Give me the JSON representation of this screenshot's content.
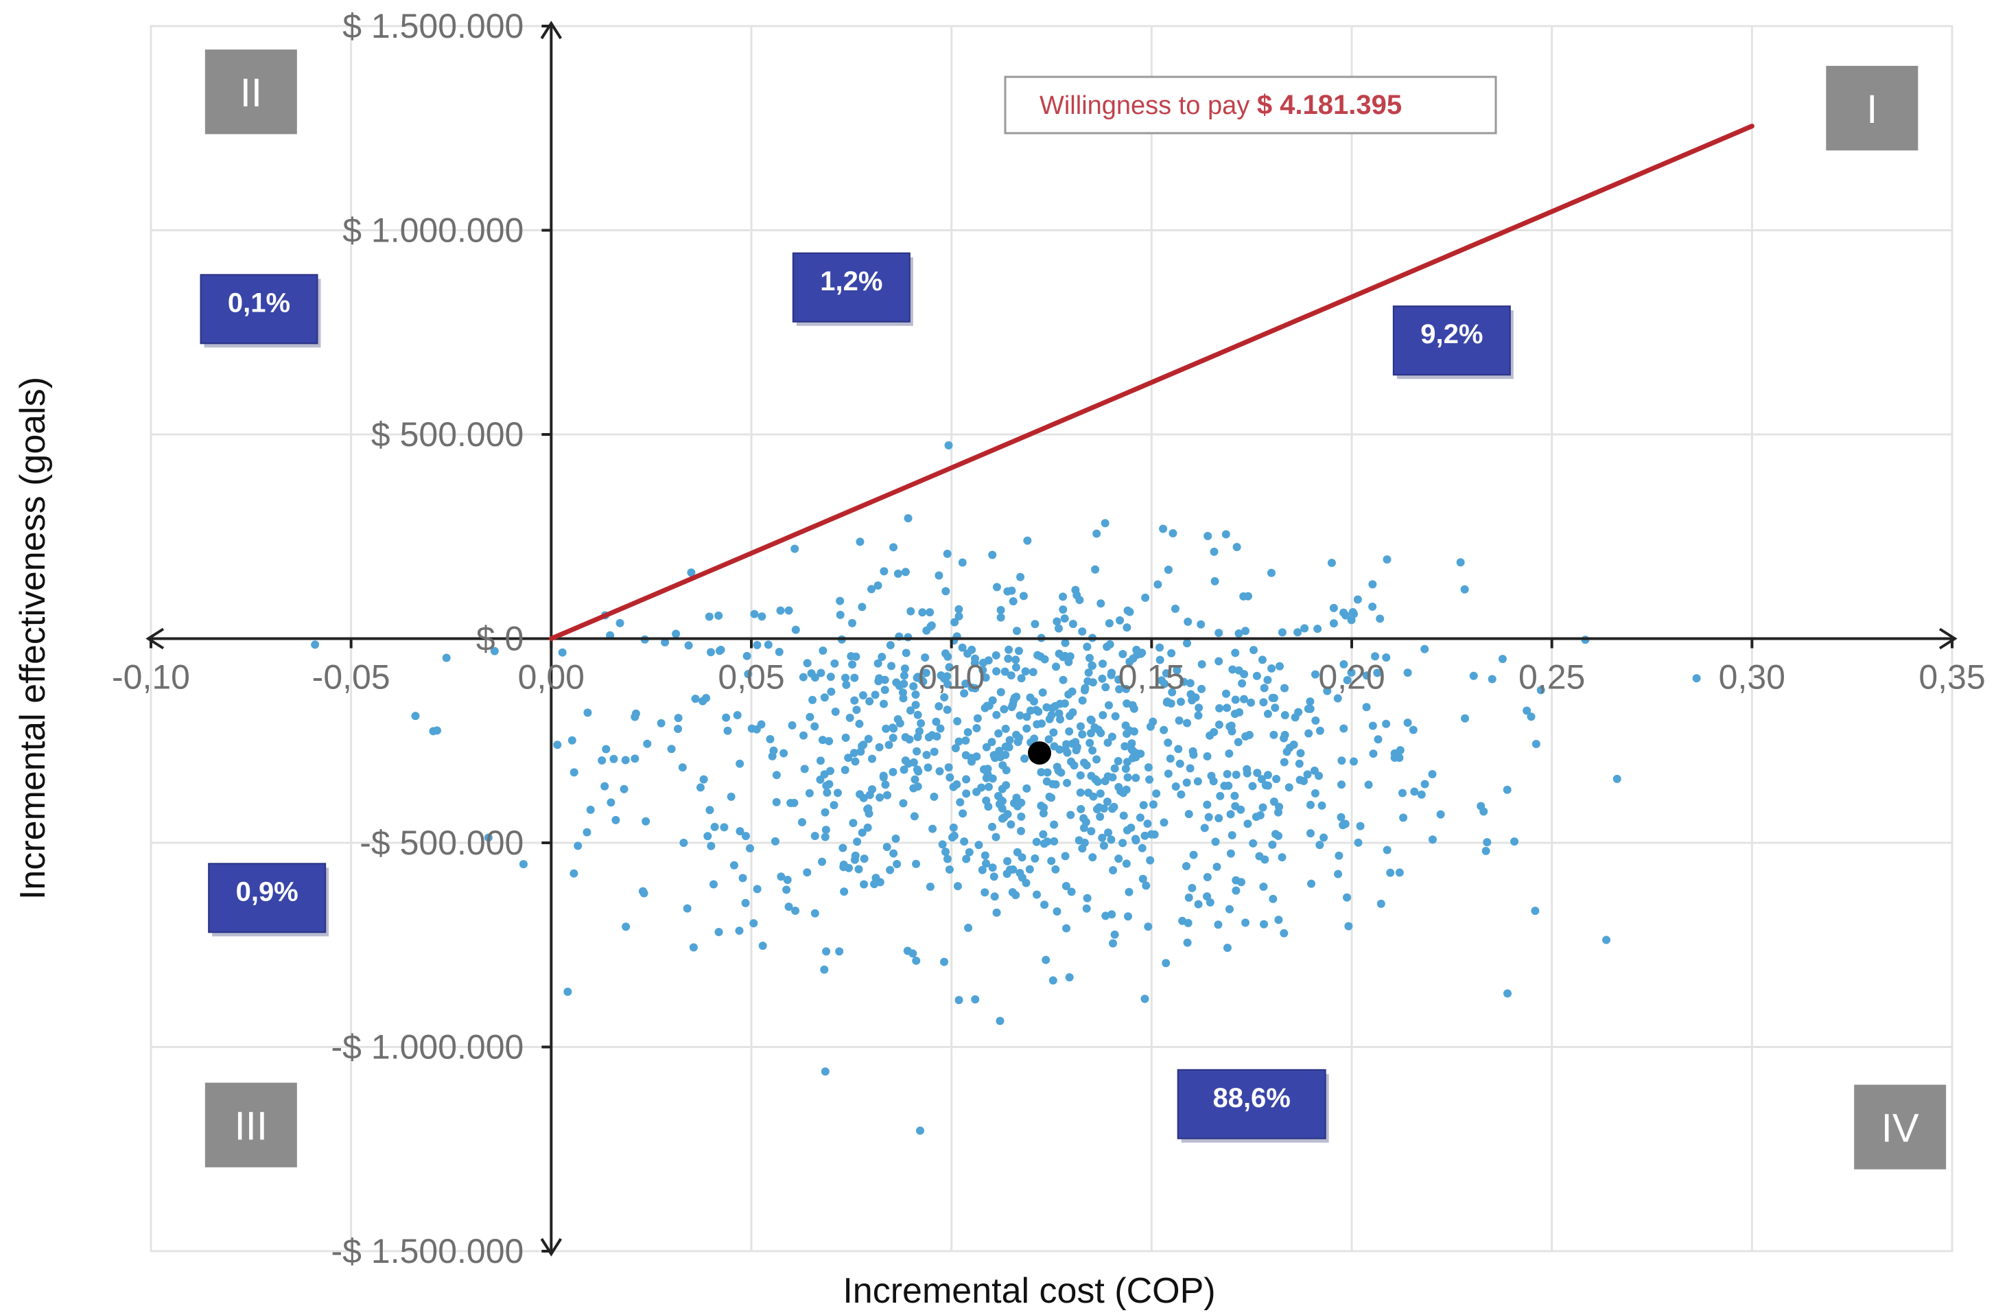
{
  "chart_data": {
    "type": "scatter",
    "xlabel": "Incremental cost (COP)",
    "ylabel": "Incremental effectiveness (goals)",
    "xlim": [
      -0.1,
      0.35
    ],
    "ylim": [
      -1500000,
      1500000
    ],
    "x_ticks": [
      "-0,10",
      "-0,05",
      "0,00",
      "0,05",
      "0,10",
      "0,15",
      "0,20",
      "0,25",
      "0,30",
      "0,35"
    ],
    "x_tick_values": [
      -0.1,
      -0.05,
      0.0,
      0.05,
      0.1,
      0.15,
      0.2,
      0.25,
      0.3,
      0.35
    ],
    "y_ticks": [
      "$ 1.500.000",
      "$ 1.000.000",
      "$ 500.000",
      "$ 0",
      "-$ 500.000",
      "-$ 1.000.000",
      "-$ 1.500.000"
    ],
    "y_tick_values": [
      1500000,
      1000000,
      500000,
      0,
      -500000,
      -1000000,
      -1500000
    ],
    "grid": true,
    "point_color": "#4fa3d6",
    "line_color": "#b8262c",
    "mean_point": {
      "x": 0.122,
      "y": -280000
    },
    "wtp_line": {
      "x": [
        0.0,
        0.3
      ],
      "y": [
        0,
        1255000
      ]
    },
    "willingness_label": "Willingness to pay",
    "willingness_value": "$ 4.181.395",
    "quadrants": [
      {
        "name": "I",
        "x": 0.33,
        "y": 1290000
      },
      {
        "name": "II",
        "x": -0.075,
        "y": 1330000
      },
      {
        "name": "III",
        "x": -0.075,
        "y": -1200000
      },
      {
        "name": "IV",
        "x": 0.337,
        "y": -1205000
      }
    ],
    "percent_labels": [
      {
        "text": "0,1%",
        "x": -0.073,
        "y": 807000
      },
      {
        "text": "1,2%",
        "x": 0.075,
        "y": 860000
      },
      {
        "text": "9,2%",
        "x": 0.225,
        "y": 730000
      },
      {
        "text": "0,9%",
        "x": -0.071,
        "y": -635000
      },
      {
        "text": "88,6%",
        "x": 0.175,
        "y": -1140000
      }
    ],
    "n_points": 1000
  }
}
